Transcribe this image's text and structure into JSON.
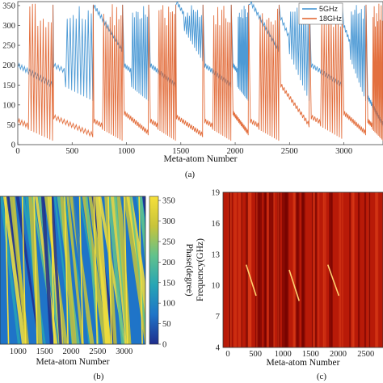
{
  "colors": {
    "series_5ghz": "#3a8fd0",
    "series_18ghz": "#e0602a",
    "colormap": [
      "#1f2d8c",
      "#1f74c8",
      "#27a5b5",
      "#62c28c",
      "#c8c43a",
      "#f6e03a"
    ],
    "heatmap_dark": "#6a0000",
    "heatmap_bright": "#ff5a3a"
  },
  "chart_data": [
    {
      "id": "a",
      "type": "line",
      "caption": "(a)",
      "xlabel": "Meta-atom Number",
      "ylabel": "",
      "xlim": [
        0,
        3360
      ],
      "ylim": [
        0,
        360
      ],
      "xticks": [
        0,
        500,
        1000,
        1500,
        2000,
        2500,
        3000
      ],
      "yticks": [
        0,
        50,
        100,
        150,
        200,
        250,
        300,
        350
      ],
      "legend": {
        "position": "top-right"
      },
      "series": [
        {
          "name": "5GHz",
          "segments": [
            {
              "x": [
                0,
                320
              ],
              "start": 200,
              "end": 150
            },
            {
              "x": [
                330,
                690
              ],
              "start": 200,
              "end": 150
            },
            {
              "x": [
                700,
                960
              ],
              "start": 350,
              "end": 240
            },
            {
              "x": [
                980,
                1200
              ],
              "start": 200,
              "end": 150
            },
            {
              "x": [
                1220,
                1450
              ],
              "start": 200,
              "end": 150
            },
            {
              "x": [
                1460,
                1700
              ],
              "start": 360,
              "end": 250
            },
            {
              "x": [
                1720,
                1960
              ],
              "start": 200,
              "end": 150
            },
            {
              "x": [
                1980,
                2120
              ],
              "start": 200,
              "end": 150
            },
            {
              "x": [
                2140,
                2400
              ],
              "start": 360,
              "end": 240
            },
            {
              "x": [
                2420,
                2680
              ],
              "start": 320,
              "end": 150
            },
            {
              "x": [
                2700,
                2980
              ],
              "start": 200,
              "end": 150
            },
            {
              "x": [
                3000,
                3200
              ],
              "start": 300,
              "end": 150
            },
            {
              "x": [
                3220,
                3360
              ],
              "start": 120,
              "end": 50
            }
          ]
        },
        {
          "name": "18GHz",
          "segments": [
            {
              "x": [
                0,
                320
              ],
              "start": 60,
              "end": 20
            },
            {
              "x": [
                330,
                690
              ],
              "start": 70,
              "end": 25
            },
            {
              "x": [
                700,
                960
              ],
              "start": 60,
              "end": 20
            },
            {
              "x": [
                980,
                1200
              ],
              "start": 80,
              "end": 30
            },
            {
              "x": [
                1220,
                1450
              ],
              "start": 60,
              "end": 20
            },
            {
              "x": [
                1460,
                1700
              ],
              "start": 70,
              "end": 25
            },
            {
              "x": [
                1720,
                1960
              ],
              "start": 60,
              "end": 20
            },
            {
              "x": [
                1980,
                2120
              ],
              "start": 80,
              "end": 30
            },
            {
              "x": [
                2140,
                2400
              ],
              "start": 60,
              "end": 20
            },
            {
              "x": [
                2420,
                2680
              ],
              "start": 150,
              "end": 50
            },
            {
              "x": [
                2700,
                2980
              ],
              "start": 70,
              "end": 25
            },
            {
              "x": [
                3000,
                3200
              ],
              "start": 80,
              "end": 30
            },
            {
              "x": [
                3220,
                3360
              ],
              "start": 60,
              "end": 20
            }
          ]
        }
      ]
    },
    {
      "id": "b",
      "type": "heatmap",
      "caption": "(b)",
      "xlabel": "Meta-atom Number",
      "colorbar_label": "Phase(degree)",
      "xlim": [
        660,
        3400
      ],
      "xticks": [
        1000,
        1500,
        2000,
        2500,
        3000
      ],
      "clim": [
        0,
        360
      ],
      "colorbar_ticks": [
        0,
        50,
        100,
        150,
        200,
        250,
        300,
        350
      ]
    },
    {
      "id": "c",
      "type": "heatmap",
      "caption": "(c)",
      "xlabel": "Meta-atom Number",
      "ylabel": "Frequency(GHz)",
      "xlim": [
        0,
        2900
      ],
      "ylim": [
        4,
        19
      ],
      "xticks": [
        0,
        500,
        1000,
        1500,
        2000,
        2500
      ],
      "yticks": [
        4,
        7,
        10,
        13,
        16,
        19
      ],
      "bright_lines": [
        {
          "x": [
            420,
            600
          ],
          "f": [
            12,
            9
          ]
        },
        {
          "x": [
            1200,
            1380
          ],
          "f": [
            11.5,
            8.5
          ]
        },
        {
          "x": [
            1900,
            2100
          ],
          "f": [
            12,
            9
          ]
        }
      ]
    }
  ]
}
